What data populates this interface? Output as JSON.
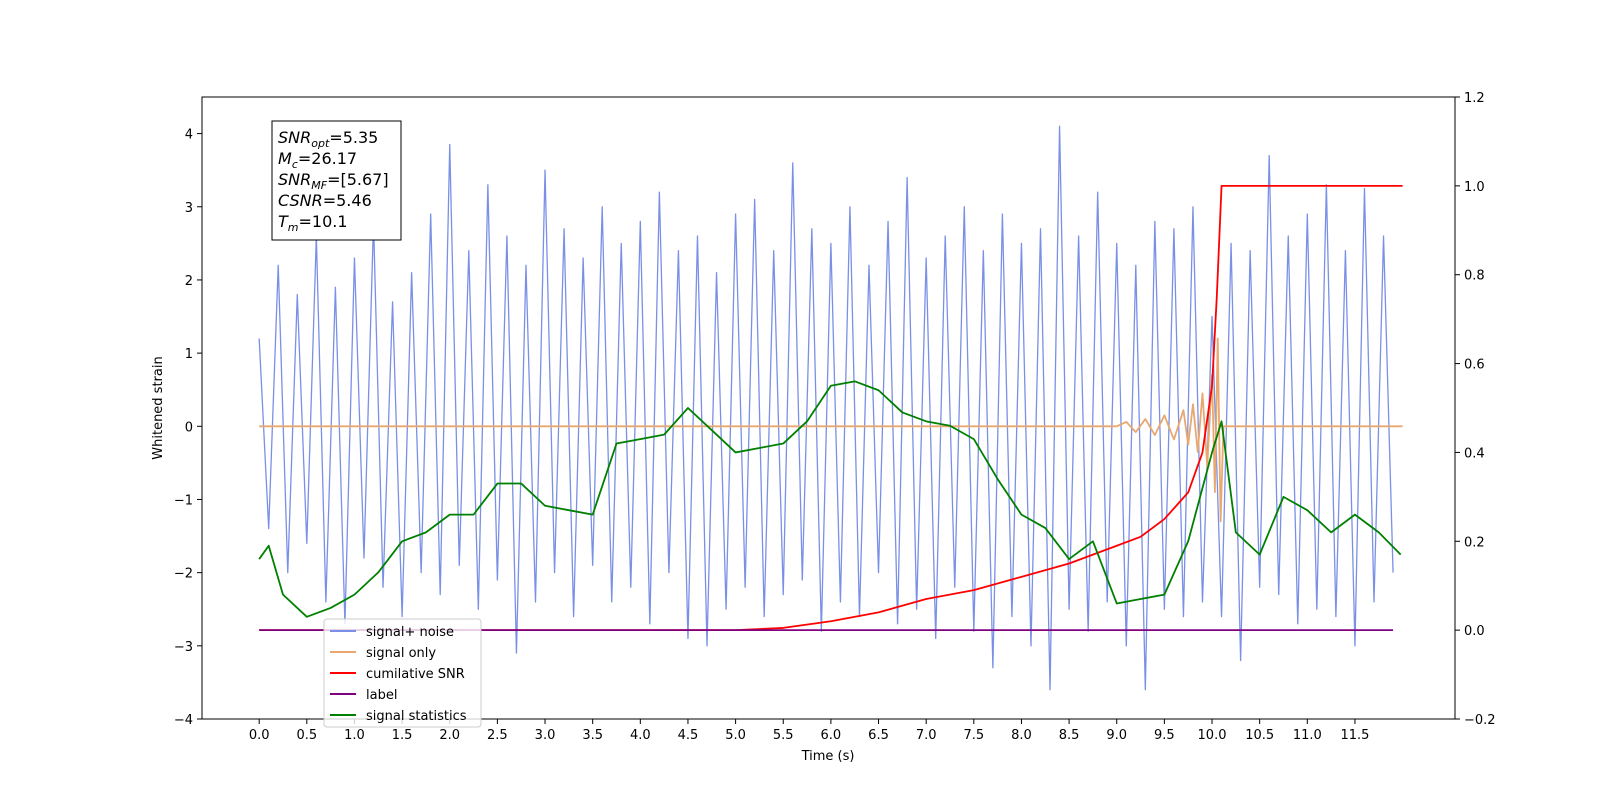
{
  "chart_data": {
    "type": "line",
    "xlabel": "Time (s)",
    "ylabel": "Whitened strain",
    "xlim": [
      -0.6,
      12.55
    ],
    "ylim": [
      -4,
      4.5
    ],
    "y2lim": [
      -0.2,
      1.2
    ],
    "xticks": [
      {
        "value": 0,
        "label": "0.0"
      },
      0.5,
      {
        "value": 1,
        "label": "1.0"
      },
      1.5,
      {
        "value": 2,
        "label": "2.0"
      },
      2.5,
      {
        "value": 3,
        "label": "3.0"
      },
      3.5,
      {
        "value": 4,
        "label": "4.0"
      },
      4.5,
      {
        "value": 5,
        "label": "5.0"
      },
      5.5,
      {
        "value": 6,
        "label": "6.0"
      },
      6.5,
      {
        "value": 7,
        "label": "7.0"
      },
      7.5,
      {
        "value": 8,
        "label": "8.0"
      },
      8.5,
      {
        "value": 9,
        "label": "9.0"
      },
      9.5,
      {
        "value": 10,
        "label": "10.0"
      },
      10.5,
      {
        "value": 11,
        "label": "11.0"
      },
      11.5
    ],
    "yticks": [
      {
        "value": -4,
        "label": "−4"
      },
      {
        "value": -3,
        "label": "−3"
      },
      {
        "value": -2,
        "label": "−2"
      },
      {
        "value": -1,
        "label": "−1"
      },
      0,
      1,
      2,
      3,
      4
    ],
    "y2ticks": [
      {
        "value": -0.2,
        "label": "−0.2"
      },
      {
        "value": 0,
        "label": "0.0"
      },
      0.2,
      0.4,
      0.6,
      0.8,
      {
        "value": 1,
        "label": "1.0"
      },
      1.2
    ],
    "legend": "lower left",
    "annotation": [
      {
        "symbol": "SNR",
        "subscript": "opt",
        "text": "=5.35"
      },
      {
        "symbol": "M",
        "subscript": "c",
        "text": "=26.17"
      },
      {
        "symbol": "SNR",
        "subscript": "MF",
        "text": "=[5.67]"
      },
      {
        "symbol": "CSNR",
        "subscript": null,
        "text": "=5.46"
      },
      {
        "symbol": "T",
        "subscript": "m",
        "text": "=10.1"
      }
    ],
    "series": [
      {
        "name": "signal+ noise",
        "color": "#7990e6",
        "axis": "y",
        "x": [
          0,
          0.1,
          0.2,
          0.3,
          0.4,
          0.5,
          0.6,
          0.7,
          0.8,
          0.9,
          1,
          1.1,
          1.2,
          1.3,
          1.4,
          1.5,
          1.6,
          1.7,
          1.8,
          1.9,
          2,
          2.1,
          2.2,
          2.3,
          2.4,
          2.5,
          2.6,
          2.7,
          2.8,
          2.9,
          3,
          3.1,
          3.2,
          3.3,
          3.4,
          3.5,
          3.6,
          3.7,
          3.8,
          3.9,
          4,
          4.1,
          4.2,
          4.3,
          4.4,
          4.5,
          4.6,
          4.7,
          4.8,
          4.9,
          5,
          5.1,
          5.2,
          5.3,
          5.4,
          5.5,
          5.6,
          5.7,
          5.8,
          5.9,
          6,
          6.1,
          6.2,
          6.3,
          6.4,
          6.5,
          6.6,
          6.7,
          6.8,
          6.9,
          7,
          7.1,
          7.2,
          7.3,
          7.4,
          7.5,
          7.6,
          7.7,
          7.8,
          7.9,
          8,
          8.1,
          8.2,
          8.3,
          8.4,
          8.5,
          8.6,
          8.7,
          8.8,
          8.9,
          9,
          9.1,
          9.2,
          9.3,
          9.4,
          9.5,
          9.6,
          9.7,
          9.8,
          9.9,
          10,
          10.1,
          10.2,
          10.3,
          10.4,
          10.5,
          10.6,
          10.7,
          10.8,
          10.9,
          11,
          11.1,
          11.2,
          11.3,
          11.4,
          11.5,
          11.6,
          11.7,
          11.8,
          11.9
        ],
        "values": [
          1.2,
          -1.4,
          2.2,
          -2.0,
          1.8,
          -1.6,
          2.6,
          -2.4,
          1.9,
          -2.7,
          2.3,
          -1.8,
          2.8,
          -2.2,
          1.7,
          -2.6,
          2.1,
          -2.0,
          2.9,
          -2.3,
          3.85,
          -1.9,
          2.4,
          -2.5,
          3.3,
          -2.1,
          2.6,
          -3.1,
          2.2,
          -2.4,
          3.5,
          -2.0,
          2.7,
          -2.6,
          2.3,
          -1.9,
          3.0,
          -2.4,
          2.5,
          -2.2,
          2.8,
          -2.7,
          3.2,
          -2.0,
          2.4,
          -2.9,
          2.6,
          -3.0,
          2.1,
          -2.5,
          2.9,
          -2.2,
          3.1,
          -2.6,
          2.4,
          -2.3,
          3.6,
          -2.1,
          2.7,
          -2.8,
          2.5,
          -2.4,
          3.0,
          -2.6,
          2.2,
          -2.0,
          2.8,
          -2.7,
          3.4,
          -2.5,
          2.3,
          -2.9,
          2.6,
          -2.2,
          3.0,
          -2.8,
          2.4,
          -3.3,
          2.9,
          -2.6,
          2.5,
          -3.0,
          2.7,
          -3.6,
          4.1,
          -2.5,
          2.6,
          -2.8,
          3.2,
          -2.4,
          2.5,
          -3.0,
          2.2,
          -3.6,
          2.8,
          -2.5,
          2.7,
          -2.6,
          3.0,
          -2.4,
          1.5,
          -2.6,
          2.5,
          -3.2,
          2.4,
          -2.2,
          3.7,
          -2.3,
          2.6,
          -2.7,
          2.9,
          -2.5,
          3.3,
          -2.6,
          2.4,
          -3.0,
          3.25,
          -2.4,
          2.6,
          -2.0
        ]
      },
      {
        "name": "signal only",
        "color": "#e8a870",
        "axis": "y",
        "x": [
          0,
          9.0,
          9.1,
          9.2,
          9.3,
          9.4,
          9.5,
          9.6,
          9.7,
          9.75,
          9.8,
          9.85,
          9.9,
          9.95,
          10.0,
          10.03,
          10.06,
          10.09,
          10.12,
          12.0
        ],
        "values": [
          0,
          0,
          0.06,
          -0.08,
          0.1,
          -0.12,
          0.15,
          -0.18,
          0.22,
          -0.25,
          0.3,
          -0.35,
          0.45,
          -0.55,
          0.7,
          -0.9,
          1.2,
          -1.3,
          0,
          0
        ]
      },
      {
        "name": "cumilative SNR",
        "color": "#ff0000",
        "axis": "y2",
        "x": [
          0,
          5,
          5.5,
          6,
          6.5,
          7,
          7.5,
          8,
          8.5,
          9,
          9.25,
          9.5,
          9.75,
          9.9,
          10,
          10.05,
          10.08,
          10.1,
          12.0
        ],
        "values": [
          0,
          0,
          0.005,
          0.02,
          0.04,
          0.07,
          0.09,
          0.12,
          0.15,
          0.19,
          0.21,
          0.25,
          0.31,
          0.4,
          0.55,
          0.75,
          0.9,
          1,
          1
        ]
      },
      {
        "name": "label",
        "color": "#800080",
        "axis": "y2",
        "x": [
          0,
          11.9
        ],
        "values": [
          0,
          0
        ]
      },
      {
        "name": "signal statistics",
        "color": "#008000",
        "axis": "y2",
        "x": [
          0,
          0.1,
          0.25,
          0.5,
          0.75,
          1,
          1.25,
          1.5,
          1.75,
          2,
          2.25,
          2.5,
          2.75,
          3,
          3.25,
          3.5,
          3.75,
          4,
          4.25,
          4.5,
          4.75,
          5,
          5.25,
          5.5,
          5.75,
          6,
          6.25,
          6.5,
          6.75,
          7,
          7.25,
          7.5,
          7.75,
          8,
          8.25,
          8.5,
          8.75,
          9,
          9.25,
          9.5,
          9.75,
          10,
          10.1,
          10.25,
          10.5,
          10.75,
          11,
          11.25,
          11.5,
          11.75,
          11.98
        ],
        "values": [
          0.16,
          0.19,
          0.08,
          0.03,
          0.05,
          0.08,
          0.13,
          0.2,
          0.22,
          0.26,
          0.26,
          0.33,
          0.33,
          0.28,
          0.27,
          0.26,
          0.42,
          0.43,
          0.44,
          0.5,
          0.45,
          0.4,
          0.41,
          0.42,
          0.47,
          0.55,
          0.56,
          0.54,
          0.49,
          0.47,
          0.46,
          0.43,
          0.34,
          0.26,
          0.23,
          0.16,
          0.2,
          0.06,
          0.07,
          0.08,
          0.2,
          0.4,
          0.47,
          0.22,
          0.17,
          0.3,
          0.27,
          0.22,
          0.26,
          0.22,
          0.17
        ]
      }
    ]
  }
}
